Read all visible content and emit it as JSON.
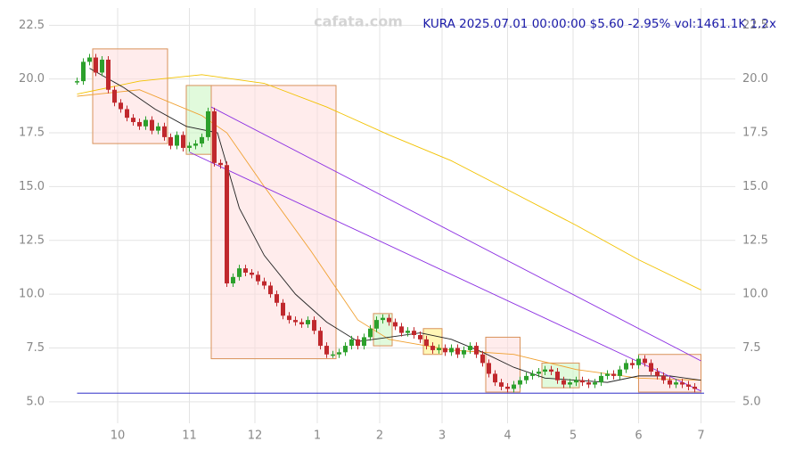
{
  "chart_data": {
    "type": "candlestick",
    "title": "KURA 2025.07.01 00:00:00 $5.60 -2.95% vol:1461.1K 1.2x",
    "watermark": "cafata.com",
    "xlim": [
      -9,
      211
    ],
    "ylim": [
      4.0,
      23.3
    ],
    "xticks": [
      {
        "value": 13,
        "label": "10"
      },
      {
        "value": 36,
        "label": "11"
      },
      {
        "value": 57,
        "label": "12"
      },
      {
        "value": 77,
        "label": "1"
      },
      {
        "value": 97,
        "label": "2"
      },
      {
        "value": 117,
        "label": "3"
      },
      {
        "value": 138,
        "label": "4"
      },
      {
        "value": 159,
        "label": "5"
      },
      {
        "value": 180,
        "label": "6"
      },
      {
        "value": 200,
        "label": "7"
      }
    ],
    "yticks": [
      {
        "value": 5,
        "label": "5.0"
      },
      7.5,
      {
        "value": 10,
        "label": "10.0"
      },
      12.5,
      {
        "value": 15,
        "label": "15.0"
      },
      17.5,
      {
        "value": 20,
        "label": "20.0"
      },
      22.5
    ],
    "grid": true,
    "up_color": "#2ca02c",
    "down_color": "#c0282d",
    "x": [
      0,
      2,
      4,
      6,
      8,
      10,
      12,
      14,
      16,
      18,
      20,
      22,
      24,
      26,
      28,
      30,
      32,
      34,
      36,
      38,
      40,
      42,
      44,
      46,
      48,
      50,
      52,
      54,
      56,
      58,
      60,
      62,
      64,
      66,
      68,
      70,
      72,
      74,
      76,
      78,
      80,
      82,
      84,
      86,
      88,
      90,
      92,
      94,
      96,
      98,
      100,
      102,
      104,
      106,
      108,
      110,
      112,
      114,
      116,
      118,
      120,
      122,
      124,
      126,
      128,
      130,
      132,
      134,
      136,
      138,
      140,
      142,
      144,
      146,
      148,
      150,
      152,
      154,
      156,
      158,
      160,
      162,
      164,
      166,
      168,
      170,
      172,
      174,
      176,
      178,
      180,
      182,
      184,
      186,
      188,
      190,
      192,
      194,
      196,
      198
    ],
    "values": [
      19.9,
      20.8,
      21.0,
      20.3,
      20.9,
      19.5,
      18.9,
      18.6,
      18.2,
      18.0,
      17.8,
      18.1,
      17.6,
      17.8,
      17.3,
      16.9,
      17.4,
      16.8,
      16.9,
      17.0,
      17.3,
      18.5,
      16.1,
      16.0,
      10.5,
      10.8,
      11.2,
      11.0,
      10.9,
      10.6,
      10.4,
      10.0,
      9.6,
      9.0,
      8.8,
      8.7,
      8.6,
      8.8,
      8.3,
      7.6,
      7.2,
      7.2,
      7.3,
      7.6,
      7.9,
      7.6,
      8.0,
      8.4,
      8.8,
      8.9,
      8.7,
      8.5,
      8.2,
      8.3,
      8.1,
      7.9,
      7.6,
      7.4,
      7.5,
      7.3,
      7.5,
      7.2,
      7.4,
      7.6,
      7.2,
      6.8,
      6.3,
      5.9,
      5.7,
      5.6,
      5.8,
      6.0,
      6.2,
      6.3,
      6.4,
      6.5,
      6.4,
      6.0,
      5.8,
      5.9,
      6.0,
      5.9,
      5.8,
      5.9,
      6.2,
      6.3,
      6.2,
      6.5,
      6.8,
      6.7,
      7.0,
      6.8,
      6.4,
      6.2,
      6.0,
      5.8,
      5.9,
      5.8,
      5.7,
      5.6
    ],
    "lines": [
      {
        "color": "#f2c200",
        "x": [
          0,
          20,
          40,
          60,
          80,
          100,
          120,
          140,
          160,
          180,
          200
        ],
        "values": [
          19.3,
          19.9,
          20.2,
          19.8,
          18.7,
          17.4,
          16.2,
          14.7,
          13.2,
          11.6,
          10.2
        ]
      },
      {
        "color": "#f0a030",
        "x": [
          0,
          20,
          40,
          48,
          60,
          75,
          90,
          100,
          120,
          140,
          160,
          180,
          200
        ],
        "values": [
          19.2,
          19.5,
          18.3,
          17.5,
          15.0,
          12.0,
          8.8,
          7.9,
          7.4,
          7.2,
          6.5,
          6.1,
          6.0
        ]
      },
      {
        "color": "#222222",
        "x": [
          4,
          15,
          25,
          35,
          45,
          52,
          60,
          70,
          80,
          90,
          100,
          110,
          120,
          130,
          140,
          150,
          160,
          170,
          180,
          190,
          200
        ],
        "values": [
          20.5,
          19.6,
          18.6,
          17.8,
          17.5,
          14.0,
          11.8,
          10.0,
          8.7,
          7.8,
          8.0,
          8.2,
          7.9,
          7.3,
          6.6,
          6.1,
          6.0,
          5.9,
          6.2,
          6.2,
          6.0
        ]
      },
      {
        "color": "#8a2be2",
        "x": [
          43,
          200
        ],
        "values": [
          18.7,
          6.9
        ]
      },
      {
        "color": "#8a2be2",
        "x": [
          36,
          200
        ],
        "values": [
          16.6,
          5.5
        ]
      },
      {
        "color": "#1010c0",
        "x": [
          0,
          201
        ],
        "values": [
          5.4,
          5.4
        ]
      }
    ],
    "boxes": [
      {
        "color": "#ffdcdc",
        "x": [
          5,
          29
        ],
        "values": [
          21.4,
          17.0
        ]
      },
      {
        "color": "#c8f5c0",
        "x": [
          35,
          43
        ],
        "values": [
          19.7,
          16.5
        ]
      },
      {
        "color": "#ffdcdc",
        "x": [
          43,
          83
        ],
        "values": [
          19.7,
          7.0
        ]
      },
      {
        "color": "#c8f5c0",
        "x": [
          95,
          101
        ],
        "values": [
          9.1,
          7.6
        ]
      },
      {
        "color": "#fff07a",
        "x": [
          111,
          117
        ],
        "values": [
          8.4,
          7.2
        ]
      },
      {
        "color": "#ffdcdc",
        "x": [
          131,
          142
        ],
        "values": [
          8.0,
          5.45
        ]
      },
      {
        "color": "#c8f5c0",
        "x": [
          149,
          161
        ],
        "values": [
          6.8,
          5.65
        ]
      },
      {
        "color": "#ffdcdc",
        "x": [
          180,
          200
        ],
        "values": [
          7.2,
          5.45
        ]
      }
    ]
  }
}
